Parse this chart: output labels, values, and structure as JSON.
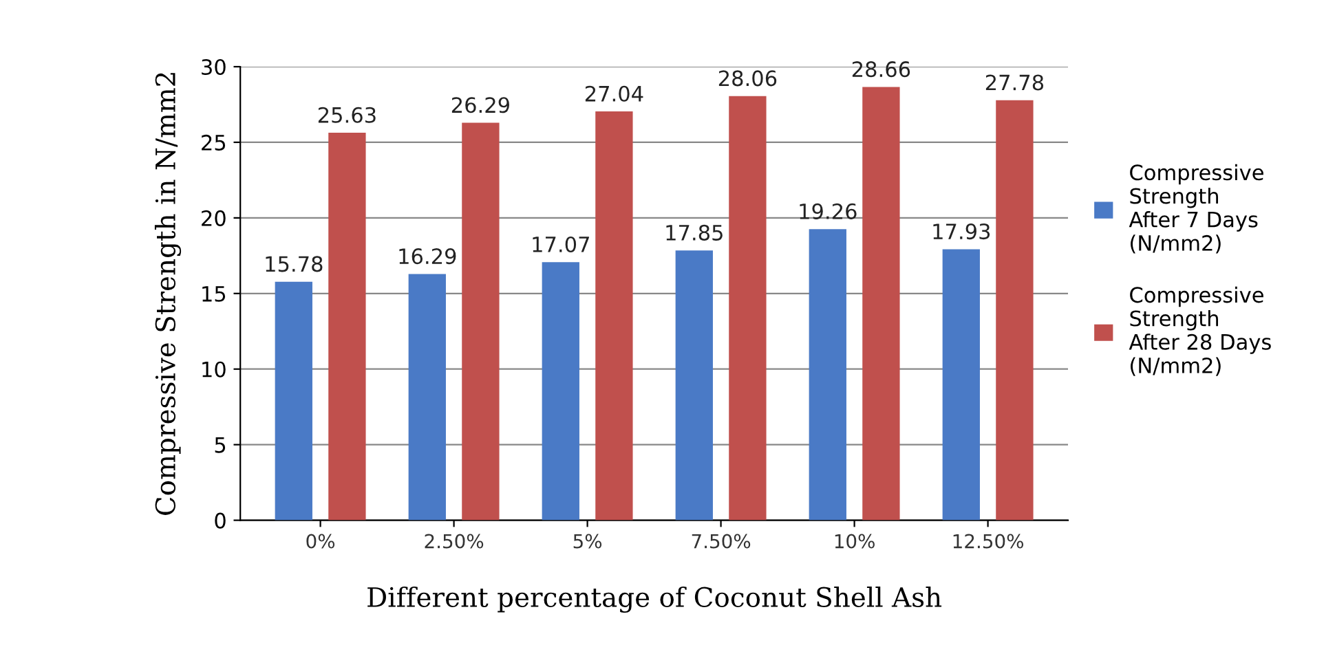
{
  "chart_data": {
    "type": "bar",
    "xlabel": "Different percentage of Coconut Shell Ash",
    "ylabel": "Compressive Strength in N/mm2",
    "categories": [
      "0%",
      "2.50%",
      "5%",
      "7.50%",
      "10%",
      "12.50%"
    ],
    "series": [
      {
        "name": "Compressive\nStrength\nAfter 7 Days\n(N/mm2)",
        "color": "#4a7ac6",
        "values": [
          15.78,
          16.29,
          17.07,
          17.85,
          19.26,
          17.93
        ]
      },
      {
        "name": "Compressive\nStrength\nAfter 28 Days\n(N/mm2)",
        "color": "#c0504d",
        "values": [
          25.63,
          26.29,
          27.04,
          28.06,
          28.66,
          27.78
        ]
      }
    ],
    "ylim": [
      0,
      30
    ],
    "yticks": [
      0,
      5,
      10,
      15,
      20,
      25,
      30
    ],
    "grid": "y",
    "legend": "right",
    "data_labels": true
  }
}
